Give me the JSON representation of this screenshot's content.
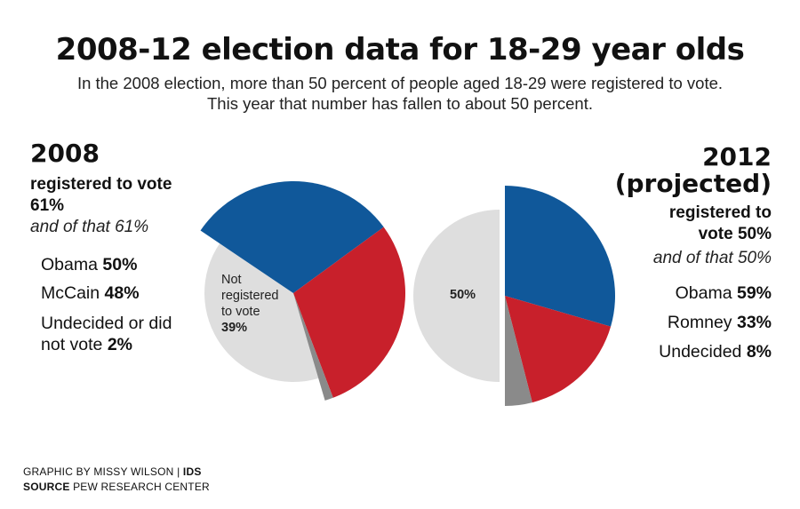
{
  "title": "2008-12 election data for 18-29 year olds",
  "subtitle_line1": "In the 2008 election, more than 50 percent of people aged 18-29 were registered to vote.",
  "subtitle_line2": "This year that number has fallen to about 50 percent.",
  "colors": {
    "obama": "#10589a",
    "mccain_romney": "#c8202b",
    "undecided": "#8a8a8a",
    "not_registered": "#dedede"
  },
  "left": {
    "year": "2008",
    "registered_line1": "registered to vote",
    "registered_line2": "61%",
    "of_that": "and of that 61%",
    "items": [
      {
        "name": "Obama",
        "value": "50%"
      },
      {
        "name": "McCain",
        "value": "48%"
      },
      {
        "name_line1": "Undecided or did",
        "name_line2": "not vote",
        "value": "2%"
      }
    ]
  },
  "right": {
    "year_line1": "2012",
    "year_line2": "(projected)",
    "registered_line1": "registered to",
    "registered_line2_text": "vote",
    "registered_line2_value": "50%",
    "of_that": "and of that 50%",
    "items": [
      {
        "name": "Obama",
        "value": "59%"
      },
      {
        "name": "Romney",
        "value": "33%"
      },
      {
        "name": "Undecided",
        "value": "8%"
      }
    ]
  },
  "footer": {
    "line1_text": "GRAPHIC BY MISSY WILSON | ",
    "line1_bold": "IDS",
    "line2_bold": "SOURCE",
    "line2_text": " PEW RESEARCH CENTER"
  },
  "chart_data": [
    {
      "type": "pie",
      "title": "2008",
      "not_registered": {
        "label_lines": [
          "Not",
          "registered",
          "to vote"
        ],
        "value_label": "39%",
        "value": 39
      },
      "registered_value": 61,
      "slices": [
        {
          "name": "Obama",
          "value": 50
        },
        {
          "name": "McCain",
          "value": 48
        },
        {
          "name": "Undecided or did not vote",
          "value": 2
        }
      ]
    },
    {
      "type": "pie",
      "title": "2012 (projected)",
      "not_registered": {
        "value_label": "50%",
        "value": 50
      },
      "registered_value": 50,
      "slices": [
        {
          "name": "Obama",
          "value": 59
        },
        {
          "name": "Romney",
          "value": 33
        },
        {
          "name": "Undecided",
          "value": 8
        }
      ]
    }
  ]
}
